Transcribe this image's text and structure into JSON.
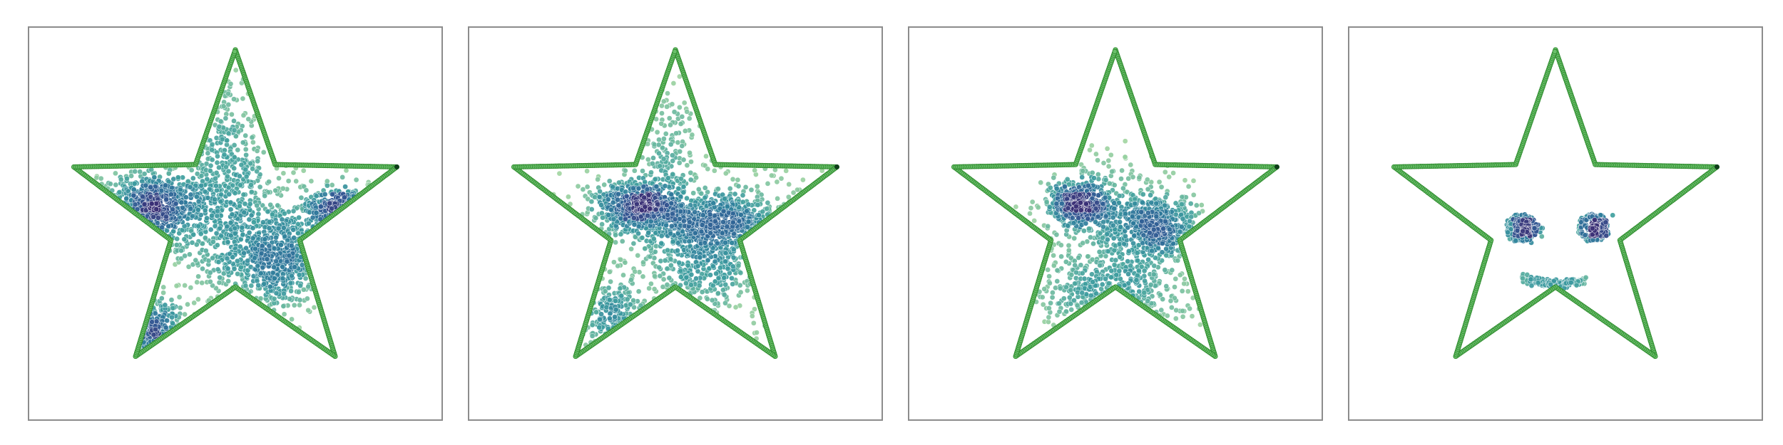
{
  "figure": {
    "background": "#ffffff",
    "frame_color": "#8c8c8c",
    "outline_color": "#2e8b2e",
    "outline_dot_color": "#6abf6a",
    "colormap": [
      "#a9d9a2",
      "#6fbba0",
      "#3e9e9e",
      "#2f7f9c",
      "#315a94",
      "#3a2f75"
    ]
  },
  "chart_data": [
    {
      "type": "scatter",
      "panel": 1,
      "title": "",
      "xlabel": "",
      "ylabel": "",
      "grid": false,
      "outline": "five-point-star",
      "series": [
        {
          "x": [
            -0.55,
            -0.25,
            0.42,
            0.78,
            -0.62,
            0.0
          ],
          "y": [
            0.12,
            0.35,
            -0.22,
            0.25,
            -0.72,
            0.55
          ]
        }
      ],
      "clusters": [
        {
          "center": [
            -0.52,
            0.05
          ],
          "spread": [
            0.18,
            0.11
          ],
          "count": 520
        },
        {
          "center": [
            0.22,
            -0.22
          ],
          "spread": [
            0.17,
            0.16
          ],
          "count": 560
        },
        {
          "center": [
            0.7,
            0.06
          ],
          "spread": [
            0.14,
            0.06
          ],
          "count": 220
        },
        {
          "center": [
            -0.52,
            -0.68
          ],
          "spread": [
            0.14,
            0.1
          ],
          "count": 200
        },
        {
          "center": [
            -0.05,
            0.35
          ],
          "spread": [
            0.12,
            0.25
          ],
          "count": 300
        },
        {
          "center": [
            -0.1,
            -0.05
          ],
          "spread": [
            0.45,
            0.25
          ],
          "count": 380
        }
      ]
    },
    {
      "type": "scatter",
      "panel": 2,
      "title": "",
      "xlabel": "",
      "ylabel": "",
      "grid": false,
      "outline": "five-point-star",
      "clusters": [
        {
          "center": [
            -0.22,
            0.07
          ],
          "spread": [
            0.13,
            0.08
          ],
          "count": 500
        },
        {
          "center": [
            0.2,
            -0.18
          ],
          "spread": [
            0.14,
            0.18
          ],
          "count": 430
        },
        {
          "center": [
            0.33,
            0.0
          ],
          "spread": [
            0.2,
            0.08
          ],
          "count": 320
        },
        {
          "center": [
            -0.38,
            -0.58
          ],
          "spread": [
            0.13,
            0.12
          ],
          "count": 160
        },
        {
          "center": [
            -0.05,
            0.35
          ],
          "spread": [
            0.1,
            0.22
          ],
          "count": 200
        },
        {
          "center": [
            0.0,
            -0.15
          ],
          "spread": [
            0.4,
            0.25
          ],
          "count": 330
        }
      ]
    },
    {
      "type": "scatter",
      "panel": 3,
      "title": "",
      "xlabel": "",
      "ylabel": "",
      "grid": false,
      "outline": "five-point-star",
      "clusters": [
        {
          "center": [
            -0.2,
            0.09
          ],
          "spread": [
            0.1,
            0.07
          ],
          "count": 380
        },
        {
          "center": [
            0.25,
            -0.05
          ],
          "spread": [
            0.13,
            0.1
          ],
          "count": 430
        },
        {
          "center": [
            -0.02,
            -0.42
          ],
          "spread": [
            0.22,
            0.12
          ],
          "count": 330
        },
        {
          "center": [
            0.0,
            0.0
          ],
          "spread": [
            0.22,
            0.2
          ],
          "count": 360
        }
      ]
    },
    {
      "type": "scatter",
      "panel": 4,
      "title": "",
      "xlabel": "",
      "ylabel": "",
      "grid": false,
      "outline": "five-point-star",
      "shapes": [
        {
          "kind": "ring",
          "center": [
            -0.2,
            -0.05
          ],
          "radius": 0.075,
          "count": 140
        },
        {
          "kind": "ring",
          "center": [
            0.22,
            -0.05
          ],
          "radius": 0.075,
          "count": 140
        },
        {
          "kind": "blob",
          "center": [
            -0.17,
            -0.05
          ],
          "spread": [
            0.035,
            0.03
          ],
          "count": 150
        },
        {
          "kind": "blob",
          "center": [
            0.24,
            -0.05
          ],
          "spread": [
            0.035,
            0.03
          ],
          "count": 150
        },
        {
          "kind": "smile",
          "from": -0.2,
          "to": 0.18,
          "count": 180
        }
      ]
    }
  ]
}
